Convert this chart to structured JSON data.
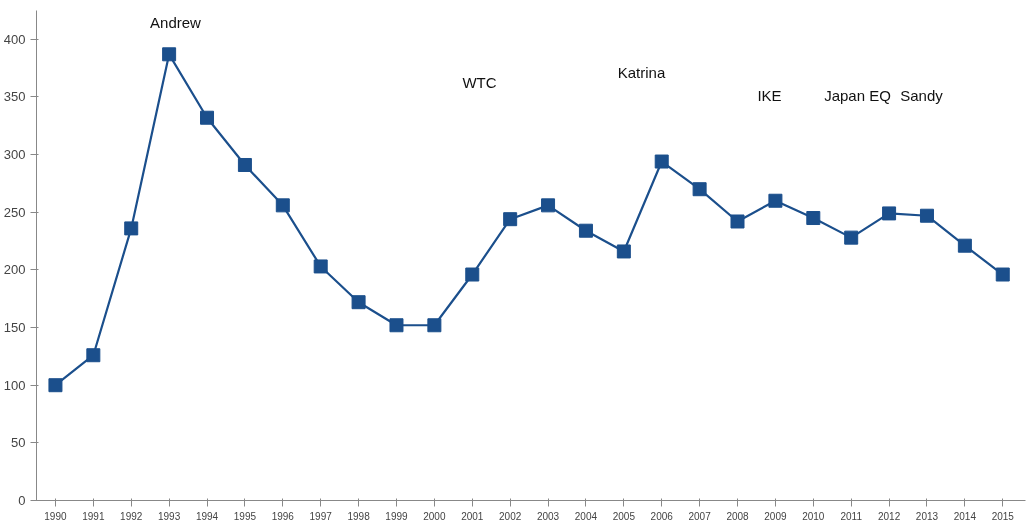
{
  "chart_data": {
    "type": "line",
    "x": [
      1990,
      1991,
      1992,
      1993,
      1994,
      1995,
      1996,
      1997,
      1998,
      1999,
      2000,
      2001,
      2002,
      2003,
      2004,
      2005,
      2006,
      2007,
      2008,
      2009,
      2010,
      2011,
      2012,
      2013,
      2014,
      2015
    ],
    "series": [
      {
        "color": "#1b4f8c",
        "values": [
          100,
          126,
          236,
          387,
          332,
          291,
          256,
          203,
          172,
          152,
          152,
          196,
          244,
          256,
          234,
          216,
          294,
          270,
          242,
          260,
          245,
          228,
          249,
          247,
          221,
          196
        ]
      }
    ],
    "marker": "square",
    "line_style": "solid",
    "grid": false,
    "xlim": [
      1989.5,
      2015.6
    ],
    "xticks": [
      1990,
      1991,
      1992,
      1993,
      1994,
      1995,
      1996,
      1997,
      1998,
      1999,
      2000,
      2001,
      2002,
      2003,
      2004,
      2005,
      2006,
      2007,
      2008,
      2009,
      2010,
      2011,
      2012,
      2013,
      2014,
      2015
    ],
    "ylim": [
      0,
      425
    ],
    "yticks": [
      0,
      50,
      100,
      150,
      200,
      250,
      300,
      350,
      400
    ],
    "annotations": [
      "Andrew",
      "WTC",
      "Katrina",
      "IKE",
      "Japan EQ",
      "Sandy"
    ]
  }
}
